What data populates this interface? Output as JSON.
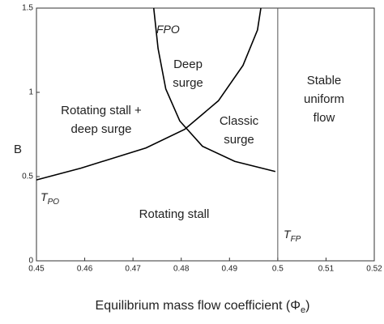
{
  "chart_data": {
    "type": "line",
    "xlabel": {
      "main": "Equilibrium mass flow coefficient (Φ",
      "sub": "e",
      "end": ")"
    },
    "ylabel": "B",
    "xlim": [
      0.45,
      0.52
    ],
    "xticks": [
      0.45,
      0.46,
      0.47,
      0.48,
      0.49,
      0.5,
      0.51,
      0.52
    ],
    "ylim": [
      0,
      1.5
    ],
    "yticks": [
      0,
      0.5,
      1,
      1.5
    ],
    "series": [
      {
        "label": {
          "main": "T",
          "sub": "PO"
        },
        "color": "#000000",
        "x": [
          0.45,
          0.4592,
          0.4727,
          0.4807,
          0.4877,
          0.4928,
          0.4958,
          0.4965
        ],
        "y": [
          0.48,
          0.55,
          0.67,
          0.78,
          0.95,
          1.16,
          1.37,
          1.5
        ]
      },
      {
        "label": {
          "main": "FPO"
        },
        "color": "#000000",
        "x": [
          0.4743,
          0.4752,
          0.4768,
          0.4797,
          0.4844,
          0.4911,
          0.4995
        ],
        "y": [
          1.5,
          1.26,
          1.02,
          0.83,
          0.68,
          0.59,
          0.53
        ]
      },
      {
        "label": {
          "main": "T",
          "sub": "FP"
        },
        "color": "#555555",
        "x": [
          0.5,
          0.5
        ],
        "y": [
          0,
          1.5
        ]
      }
    ],
    "annotations": [
      {
        "lines": [
          "Rotating stall +",
          "deep surge"
        ]
      },
      {
        "lines": [
          "Deep",
          "surge"
        ]
      },
      {
        "lines": [
          "Classic",
          "surge"
        ]
      },
      {
        "lines": [
          "Stable",
          "uniform",
          "flow"
        ]
      },
      {
        "lines": [
          "Rotating stall"
        ]
      }
    ]
  }
}
